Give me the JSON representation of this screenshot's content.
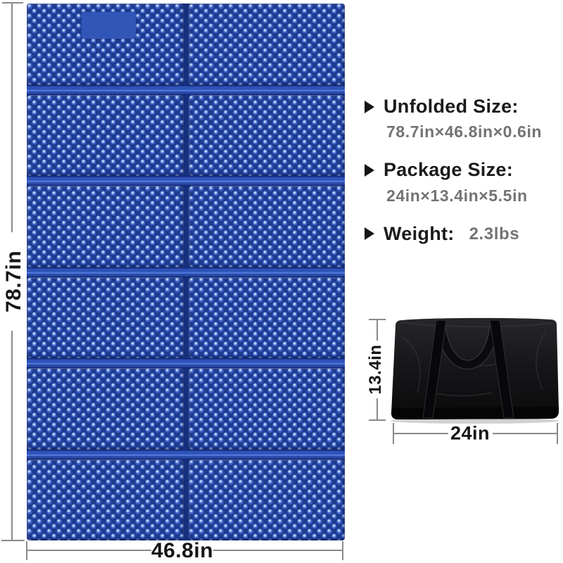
{
  "specs": {
    "unfolded": {
      "label": "Unfolded Size:",
      "value": "78.7in×46.8in×0.6in"
    },
    "package": {
      "label": "Package Size:",
      "value": "24in×13.4in×5.5in"
    },
    "weight": {
      "label": "Weight:",
      "value": "2.3lbs"
    }
  },
  "mat": {
    "rows": 6,
    "cols": 2,
    "height_label": "78.7in",
    "width_label": "46.8in"
  },
  "bag": {
    "height_label": "13.4in",
    "width_label": "24in"
  },
  "icons": {
    "bullet_triangle": "right-pointing-triangle"
  },
  "colors": {
    "mat_blue": "#2b4db2",
    "mat_blue_dark": "#16307e",
    "mat_blue_light": "#4d74d6",
    "bag_black": "#121214",
    "dim_line_gray": "#8a8a8a",
    "heading_text": "#1b1b1b",
    "value_text": "#737373"
  }
}
